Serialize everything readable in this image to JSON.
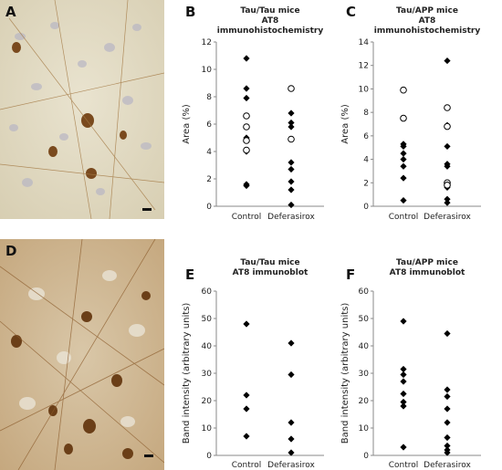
{
  "panels": {
    "A": "A",
    "B": "B",
    "C": "C",
    "D": "D",
    "E": "E",
    "F": "F"
  },
  "chart_data": [
    {
      "id": "B",
      "type": "scatter",
      "title": [
        "Tau/Tau mice",
        "AT8",
        "immunohistochemistry"
      ],
      "ylabel": "Area (%)",
      "categories": [
        "Control",
        "Deferasirox"
      ],
      "ylim": [
        0,
        12
      ],
      "yticks": [
        0,
        2,
        4,
        6,
        8,
        10,
        12
      ],
      "series": [
        {
          "marker": "filled-diamond",
          "points": [
            {
              "x": "Control",
              "y": 10.8
            },
            {
              "x": "Control",
              "y": 8.6
            },
            {
              "x": "Control",
              "y": 7.9
            },
            {
              "x": "Control",
              "y": 5.8
            },
            {
              "x": "Control",
              "y": 5.0
            },
            {
              "x": "Control",
              "y": 4.0
            },
            {
              "x": "Control",
              "y": 1.6
            },
            {
              "x": "Control",
              "y": 1.5
            },
            {
              "x": "Deferasirox",
              "y": 6.8
            },
            {
              "x": "Deferasirox",
              "y": 6.1
            },
            {
              "x": "Deferasirox",
              "y": 5.8
            },
            {
              "x": "Deferasirox",
              "y": 3.2
            },
            {
              "x": "Deferasirox",
              "y": 2.7
            },
            {
              "x": "Deferasirox",
              "y": 1.8
            },
            {
              "x": "Deferasirox",
              "y": 1.2
            },
            {
              "x": "Deferasirox",
              "y": 0.1
            }
          ]
        },
        {
          "marker": "open-circle",
          "points": [
            {
              "x": "Control",
              "y": 6.6
            },
            {
              "x": "Control",
              "y": 5.8
            },
            {
              "x": "Control",
              "y": 4.8
            },
            {
              "x": "Control",
              "y": 4.1
            },
            {
              "x": "Deferasirox",
              "y": 8.6
            },
            {
              "x": "Deferasirox",
              "y": 4.9
            }
          ]
        }
      ]
    },
    {
      "id": "C",
      "type": "scatter",
      "title": [
        "Tau/APP mice",
        "AT8",
        "immunohistochemistry"
      ],
      "ylabel": "Area (%)",
      "categories": [
        "Control",
        "Deferasirox"
      ],
      "ylim": [
        0,
        14
      ],
      "yticks": [
        0,
        2,
        4,
        6,
        8,
        10,
        12,
        14
      ],
      "series": [
        {
          "marker": "filled-diamond",
          "points": [
            {
              "x": "Control",
              "y": 5.3
            },
            {
              "x": "Control",
              "y": 5.1
            },
            {
              "x": "Control",
              "y": 4.5
            },
            {
              "x": "Control",
              "y": 4.0
            },
            {
              "x": "Control",
              "y": 3.4
            },
            {
              "x": "Control",
              "y": 2.4
            },
            {
              "x": "Control",
              "y": 0.5
            },
            {
              "x": "Deferasirox",
              "y": 12.4
            },
            {
              "x": "Deferasirox",
              "y": 6.9
            },
            {
              "x": "Deferasirox",
              "y": 5.1
            },
            {
              "x": "Deferasirox",
              "y": 3.6
            },
            {
              "x": "Deferasirox",
              "y": 3.4
            },
            {
              "x": "Deferasirox",
              "y": 1.6
            },
            {
              "x": "Deferasirox",
              "y": 0.6
            },
            {
              "x": "Deferasirox",
              "y": 0.3
            }
          ]
        },
        {
          "marker": "open-circle",
          "points": [
            {
              "x": "Control",
              "y": 9.9
            },
            {
              "x": "Control",
              "y": 7.5
            },
            {
              "x": "Deferasirox",
              "y": 8.4
            },
            {
              "x": "Deferasirox",
              "y": 6.8
            },
            {
              "x": "Deferasirox",
              "y": 2.0
            },
            {
              "x": "Deferasirox",
              "y": 1.8
            }
          ]
        }
      ]
    },
    {
      "id": "E",
      "type": "scatter",
      "title": [
        "Tau/Tau mice",
        "AT8 immunoblot"
      ],
      "ylabel": "Band intensity (arbitrary units)",
      "categories": [
        "Control",
        "Deferasirox"
      ],
      "ylim": [
        0,
        60
      ],
      "yticks": [
        0,
        10,
        20,
        30,
        40,
        50,
        60
      ],
      "series": [
        {
          "marker": "filled-diamond",
          "points": [
            {
              "x": "Control",
              "y": 48
            },
            {
              "x": "Control",
              "y": 22
            },
            {
              "x": "Control",
              "y": 17
            },
            {
              "x": "Control",
              "y": 7
            },
            {
              "x": "Deferasirox",
              "y": 41
            },
            {
              "x": "Deferasirox",
              "y": 29.5
            },
            {
              "x": "Deferasirox",
              "y": 12
            },
            {
              "x": "Deferasirox",
              "y": 6
            },
            {
              "x": "Deferasirox",
              "y": 1
            }
          ]
        }
      ]
    },
    {
      "id": "F",
      "type": "scatter",
      "title": [
        "Tau/APP mice",
        "AT8 immunoblot"
      ],
      "ylabel": "Band intensity (arbitrary units)",
      "categories": [
        "Control",
        "Deferasirox"
      ],
      "ylim": [
        0,
        60
      ],
      "yticks": [
        0,
        10,
        20,
        30,
        40,
        50,
        60
      ],
      "series": [
        {
          "marker": "filled-diamond",
          "points": [
            {
              "x": "Control",
              "y": 49
            },
            {
              "x": "Control",
              "y": 31.5
            },
            {
              "x": "Control",
              "y": 29.5
            },
            {
              "x": "Control",
              "y": 27
            },
            {
              "x": "Control",
              "y": 22.5
            },
            {
              "x": "Control",
              "y": 19.5
            },
            {
              "x": "Control",
              "y": 18
            },
            {
              "x": "Control",
              "y": 3
            },
            {
              "x": "Deferasirox",
              "y": 44.5
            },
            {
              "x": "Deferasirox",
              "y": 24
            },
            {
              "x": "Deferasirox",
              "y": 21.5
            },
            {
              "x": "Deferasirox",
              "y": 17
            },
            {
              "x": "Deferasirox",
              "y": 12
            },
            {
              "x": "Deferasirox",
              "y": 6.5
            },
            {
              "x": "Deferasirox",
              "y": 3.5
            },
            {
              "x": "Deferasirox",
              "y": 2
            },
            {
              "x": "Deferasirox",
              "y": 1
            }
          ]
        }
      ]
    }
  ]
}
